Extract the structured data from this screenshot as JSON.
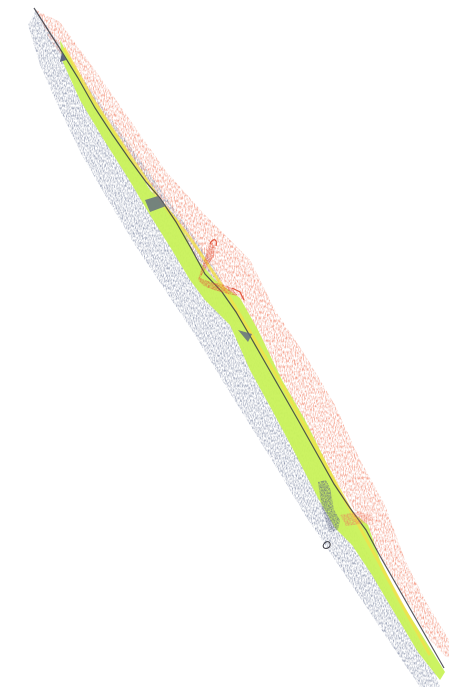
{
  "drawing": {
    "colors": {
      "paper": "#ffffff",
      "red_pencil": "#f07a5e",
      "red_pencil_dark": "#e2553c",
      "yellow_green": "#c9f25a",
      "yellow": "#f2e04a",
      "blue_gray": "#8a93ab",
      "blue_gray_dark": "#5e6783",
      "ink": "#3a3a42"
    },
    "figures": [
      {
        "name": "red-figure"
      },
      {
        "name": "blue-figure"
      }
    ]
  }
}
